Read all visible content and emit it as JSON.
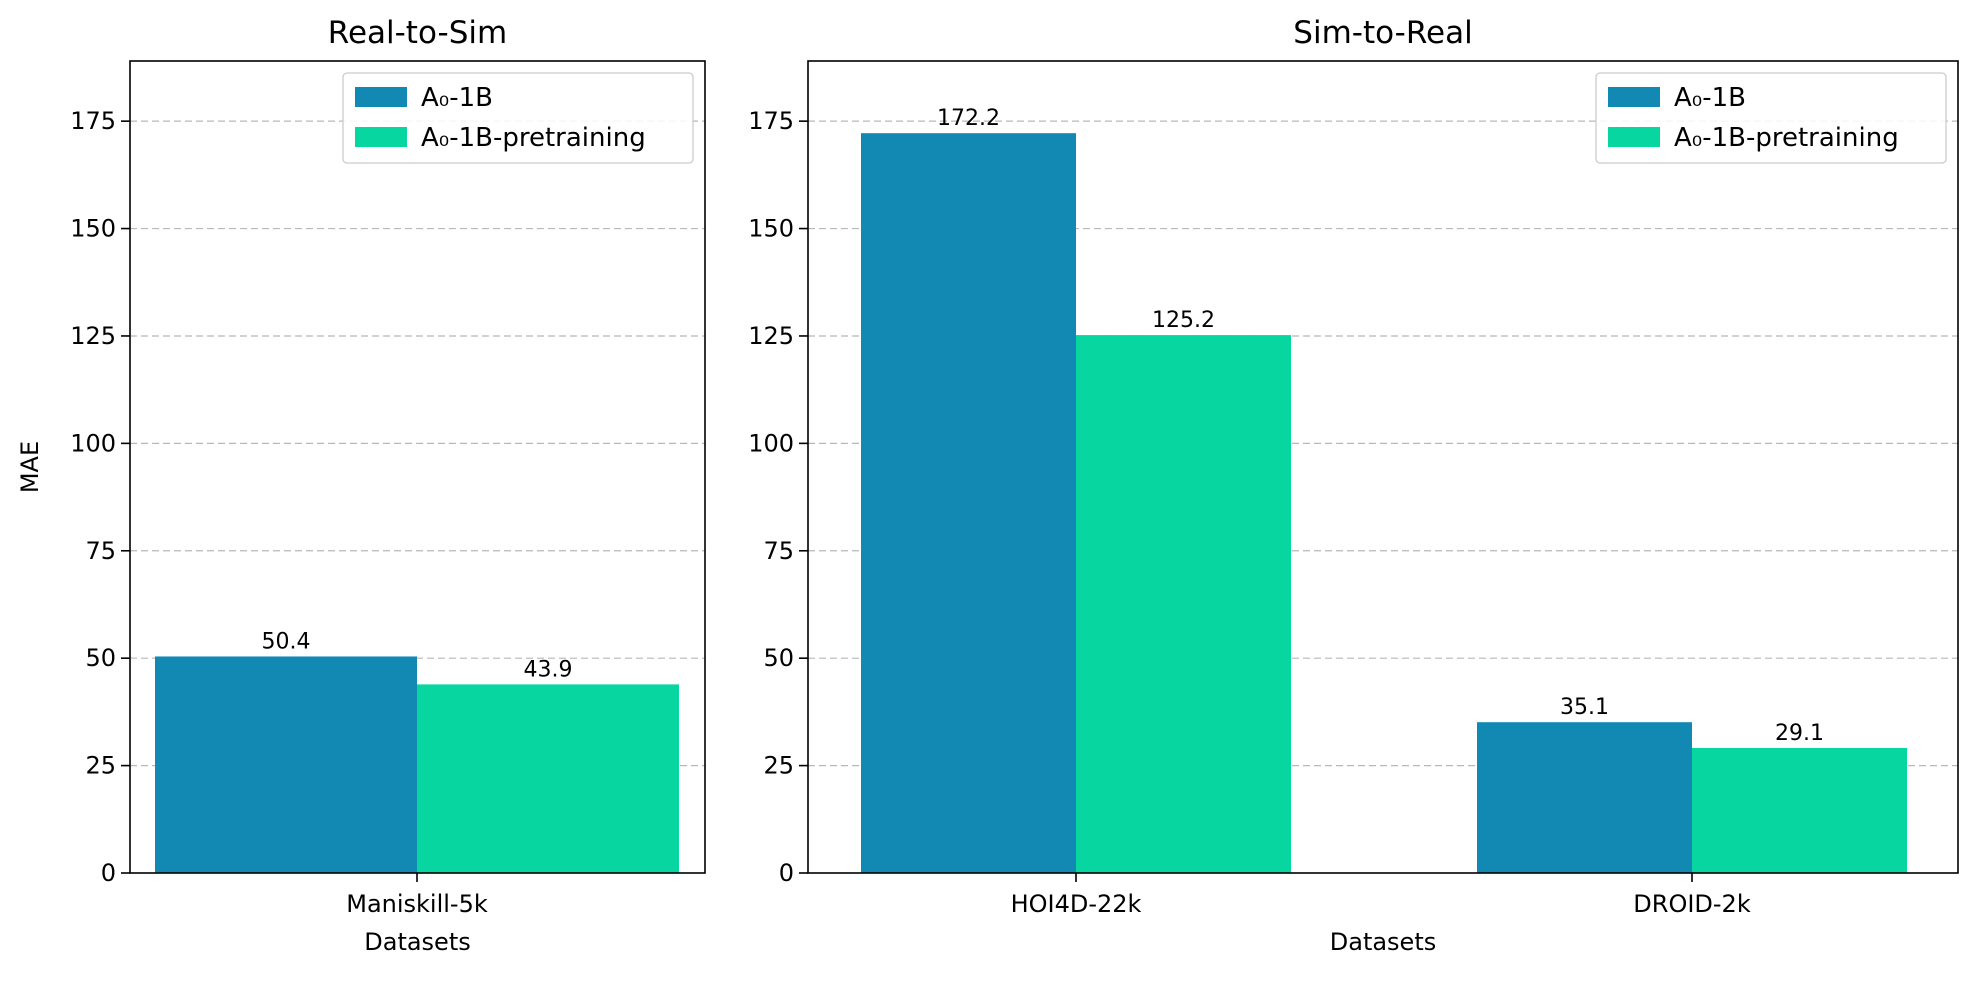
{
  "chart_data": [
    {
      "type": "bar",
      "title": "Real-to-Sim",
      "categories": [
        "Maniskill-5k"
      ],
      "series": [
        {
          "name": "A₀-1B",
          "values": [
            50.4
          ],
          "labels": [
            "50.4"
          ]
        },
        {
          "name": "A₀-1B-pretraining",
          "values": [
            43.9
          ],
          "labels": [
            "43.9"
          ]
        }
      ],
      "xlabel": "Datasets",
      "ylabel": "MAE",
      "ylim": [
        0,
        189
      ],
      "yticks": [
        0,
        25,
        50,
        75,
        100,
        125,
        150,
        175
      ],
      "grid": "y-dashed",
      "legend_position": "upper right"
    },
    {
      "type": "bar",
      "title": "Sim-to-Real",
      "categories": [
        "HOI4D-22k",
        "DROID-2k"
      ],
      "series": [
        {
          "name": "A₀-1B",
          "values": [
            172.2,
            35.1
          ],
          "labels": [
            "172.2",
            "35.1"
          ]
        },
        {
          "name": "A₀-1B-pretraining",
          "values": [
            125.2,
            29.1
          ],
          "labels": [
            "125.2",
            "29.1"
          ]
        }
      ],
      "xlabel": "Datasets",
      "ylabel": "",
      "ylim": [
        0,
        189
      ],
      "yticks": [
        0,
        25,
        50,
        75,
        100,
        125,
        150,
        175
      ],
      "grid": "y-dashed",
      "legend_position": "upper right"
    }
  ],
  "colors": {
    "series": [
      "#1289b3",
      "#07d6a0"
    ],
    "grid": "#b8b8b8",
    "axis": "#000000"
  }
}
